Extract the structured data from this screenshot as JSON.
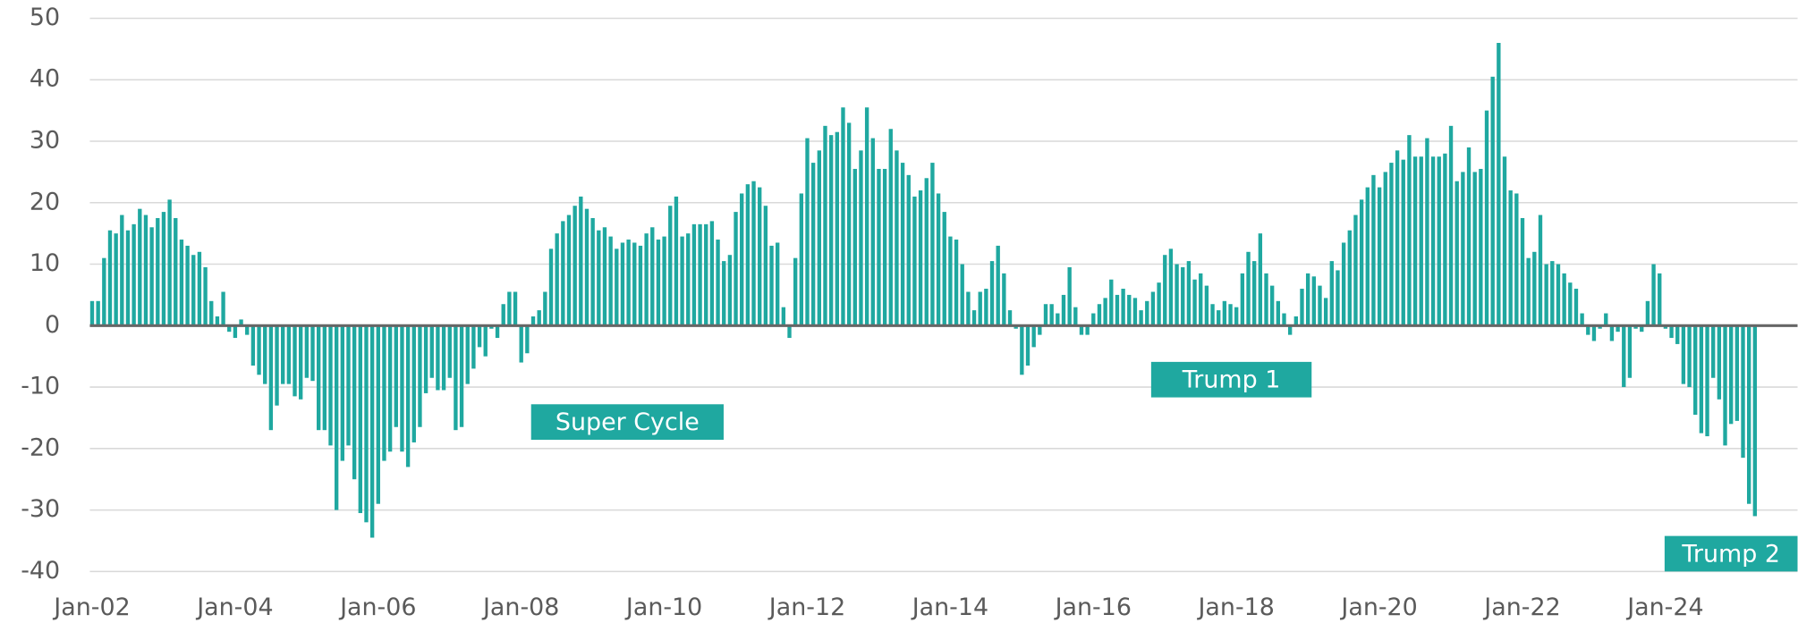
{
  "chart_data": {
    "type": "bar",
    "categories": [
      "Jan-02",
      null,
      null,
      null,
      null,
      null,
      null,
      null,
      null,
      null,
      null,
      null,
      null,
      null,
      null,
      null,
      null,
      null,
      null,
      null,
      null,
      null,
      null,
      null,
      "Jan-04",
      null,
      null,
      null,
      null,
      null,
      null,
      null,
      null,
      null,
      null,
      null,
      null,
      null,
      null,
      null,
      null,
      null,
      null,
      null,
      null,
      null,
      null,
      null,
      "Jan-06",
      null,
      null,
      null,
      null,
      null,
      null,
      null,
      null,
      null,
      null,
      null,
      null,
      null,
      null,
      null,
      null,
      null,
      null,
      null,
      null,
      null,
      null,
      null,
      "Jan-08",
      null,
      null,
      null,
      null,
      null,
      null,
      null,
      null,
      null,
      null,
      null,
      null,
      null,
      null,
      null,
      null,
      null,
      null,
      null,
      null,
      null,
      null,
      null,
      "Jan-10",
      null,
      null,
      null,
      null,
      null,
      null,
      null,
      null,
      null,
      null,
      null,
      null,
      null,
      null,
      null,
      null,
      null,
      null,
      null,
      null,
      null,
      null,
      null,
      "Jan-12",
      null,
      null,
      null,
      null,
      null,
      null,
      null,
      null,
      null,
      null,
      null,
      null,
      null,
      null,
      null,
      null,
      null,
      null,
      null,
      null,
      null,
      null,
      null,
      "Jan-14",
      null,
      null,
      null,
      null,
      null,
      null,
      null,
      null,
      null,
      null,
      null,
      null,
      null,
      null,
      null,
      null,
      null,
      null,
      null,
      null,
      null,
      null,
      null,
      "Jan-16",
      null,
      null,
      null,
      null,
      null,
      null,
      null,
      null,
      null,
      null,
      null,
      null,
      null,
      null,
      null,
      null,
      null,
      null,
      null,
      null,
      null,
      null,
      null,
      "Jan-18",
      null,
      null,
      null,
      null,
      null,
      null,
      null,
      null,
      null,
      null,
      null,
      null,
      null,
      null,
      null,
      null,
      null,
      null,
      null,
      null,
      null,
      null,
      null,
      "Jan-20",
      null,
      null,
      null,
      null,
      null,
      null,
      null,
      null,
      null,
      null,
      null,
      null,
      null,
      null,
      null,
      null,
      null,
      null,
      null,
      null,
      null,
      null,
      null,
      "Jan-22",
      null,
      null,
      null,
      null,
      null,
      null,
      null,
      null,
      null,
      null,
      null,
      null,
      null,
      null,
      null,
      null,
      null,
      null,
      null,
      null,
      null,
      null,
      null,
      "Jan-24",
      null,
      null,
      null,
      null,
      null,
      null,
      null,
      null,
      null,
      null,
      null,
      null,
      null,
      null,
      null
    ],
    "values": [
      4,
      4,
      11,
      15.5,
      15,
      18,
      15.5,
      16.5,
      19,
      18,
      16,
      17.5,
      18.5,
      20.5,
      17.5,
      14,
      13,
      11.5,
      12,
      9.5,
      4,
      1.5,
      5.5,
      -1,
      -2,
      1,
      -1.5,
      -6.5,
      -8,
      -9.5,
      -17,
      -13,
      -9.5,
      -9.5,
      -11.5,
      -12,
      -8.5,
      -9,
      -17,
      -17,
      -19.5,
      -30,
      -22,
      -19.5,
      -25,
      -30.5,
      -32,
      -34.5,
      -29,
      -22,
      -20.5,
      -16.5,
      -20.5,
      -23,
      -19,
      -16.5,
      -11,
      -8.5,
      -10.5,
      -10.5,
      -8.5,
      -17,
      -16.5,
      -9.5,
      -7,
      -3.5,
      -5,
      -0.5,
      -2,
      3.5,
      5.5,
      5.5,
      -6,
      -4.5,
      1.5,
      2.5,
      5.5,
      12.5,
      15,
      17,
      18,
      19.5,
      21,
      19,
      17.5,
      15.5,
      16,
      14.5,
      12.5,
      13.5,
      14,
      13.5,
      13,
      15,
      16,
      14,
      14.5,
      19.5,
      21,
      14.5,
      15,
      16.5,
      16.5,
      16.5,
      17,
      14,
      10.5,
      11.5,
      18.5,
      21.5,
      23,
      23.5,
      22.5,
      19.5,
      13,
      13.5,
      3,
      -2,
      11,
      21.5,
      30.5,
      26.5,
      28.5,
      32.5,
      31,
      31.5,
      35.5,
      33,
      25.5,
      28.5,
      35.5,
      30.5,
      25.5,
      25.5,
      32,
      28.5,
      26.5,
      24.5,
      21,
      22,
      24,
      26.5,
      21.5,
      18.5,
      14.5,
      14,
      10,
      5.5,
      2.5,
      5.5,
      6,
      10.5,
      13,
      8.5,
      2.5,
      -0.5,
      -8,
      -6.5,
      -3.5,
      -1.5,
      3.5,
      3.5,
      2,
      5,
      9.5,
      3,
      -1.5,
      -1.5,
      2,
      3.5,
      4.5,
      7.5,
      5,
      6,
      5,
      4.5,
      2.5,
      4,
      5.5,
      7,
      11.5,
      12.5,
      10,
      9.5,
      10.5,
      7.5,
      8.5,
      6.5,
      3.5,
      2.5,
      4,
      3.5,
      3,
      8.5,
      12,
      10.5,
      15,
      8.5,
      6.5,
      4,
      2,
      -1.5,
      1.5,
      6,
      8.5,
      8,
      6.5,
      4.5,
      10.5,
      9,
      13.5,
      15.5,
      18,
      20.5,
      22.5,
      24.5,
      22.5,
      25,
      26.5,
      28.5,
      27,
      31,
      27.5,
      27.5,
      30.5,
      27.5,
      27.5,
      28,
      32.5,
      23.5,
      25,
      29,
      25,
      25.5,
      35,
      40.5,
      46,
      27.5,
      22,
      21.5,
      17.5,
      11,
      12,
      18,
      10,
      10.5,
      10,
      8.5,
      7,
      6,
      2,
      -1.5,
      -2.5,
      -0.5,
      2,
      -2.5,
      -1,
      -10,
      -8.5,
      -0.5,
      -1,
      4,
      10,
      8.5,
      -0.5,
      -2,
      -3,
      -9.5,
      -10,
      -14.5,
      -17.5,
      -18,
      -8.5,
      -12,
      -19.5,
      -16,
      -15.5,
      -21.5,
      -29,
      -31
    ],
    "color": "#1fa8a0",
    "ylim": [
      -40,
      50
    ],
    "yticks": [
      -40,
      -30,
      -20,
      -10,
      0,
      10,
      20,
      30,
      40,
      50
    ],
    "grid": true,
    "annotations": [
      "Super Cycle",
      "Trump 1",
      "Trump 2"
    ]
  }
}
